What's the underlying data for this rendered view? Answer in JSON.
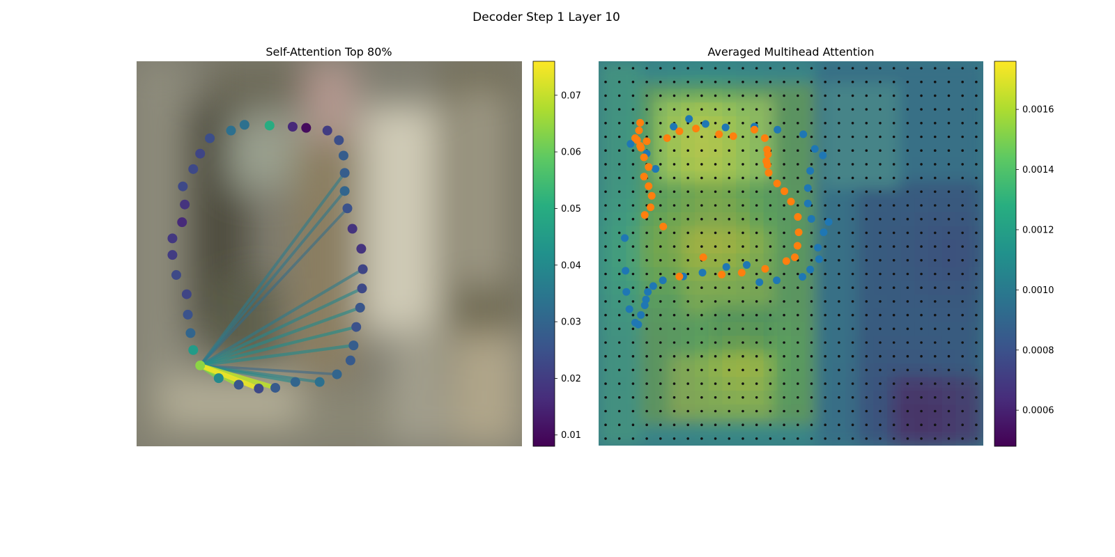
{
  "figure": {
    "suptitle": "Decoder Step 1 Layer 10"
  },
  "chart_data": [
    {
      "type": "scatter",
      "title": "Self-Attention Top 80%",
      "background": "blurred photograph (street scene), no axes",
      "colormap": "viridis",
      "colorbar": {
        "ticks": [
          0.01,
          0.02,
          0.03,
          0.04,
          0.05,
          0.06,
          0.07
        ],
        "range": [
          0.008,
          0.076
        ]
      },
      "query_point": {
        "x": 0.165,
        "y": 0.79,
        "value": 0.064
      },
      "points": [
        {
          "x": 0.28,
          "y": 0.165,
          "value": 0.033
        },
        {
          "x": 0.245,
          "y": 0.18,
          "value": 0.033
        },
        {
          "x": 0.19,
          "y": 0.2,
          "value": 0.024
        },
        {
          "x": 0.165,
          "y": 0.24,
          "value": 0.022
        },
        {
          "x": 0.147,
          "y": 0.28,
          "value": 0.023
        },
        {
          "x": 0.12,
          "y": 0.325,
          "value": 0.023
        },
        {
          "x": 0.125,
          "y": 0.372,
          "value": 0.018
        },
        {
          "x": 0.118,
          "y": 0.418,
          "value": 0.016
        },
        {
          "x": 0.093,
          "y": 0.46,
          "value": 0.019
        },
        {
          "x": 0.093,
          "y": 0.503,
          "value": 0.02
        },
        {
          "x": 0.103,
          "y": 0.555,
          "value": 0.023
        },
        {
          "x": 0.13,
          "y": 0.605,
          "value": 0.022
        },
        {
          "x": 0.133,
          "y": 0.658,
          "value": 0.025
        },
        {
          "x": 0.14,
          "y": 0.706,
          "value": 0.03
        },
        {
          "x": 0.147,
          "y": 0.75,
          "value": 0.045
        },
        {
          "x": 0.213,
          "y": 0.823,
          "value": 0.04
        },
        {
          "x": 0.265,
          "y": 0.84,
          "value": 0.026
        },
        {
          "x": 0.317,
          "y": 0.85,
          "value": 0.023
        },
        {
          "x": 0.36,
          "y": 0.848,
          "value": 0.027
        },
        {
          "x": 0.412,
          "y": 0.833,
          "value": 0.03
        },
        {
          "x": 0.475,
          "y": 0.833,
          "value": 0.033
        },
        {
          "x": 0.52,
          "y": 0.813,
          "value": 0.03
        },
        {
          "x": 0.555,
          "y": 0.777,
          "value": 0.027
        },
        {
          "x": 0.563,
          "y": 0.738,
          "value": 0.028
        },
        {
          "x": 0.57,
          "y": 0.69,
          "value": 0.025
        },
        {
          "x": 0.58,
          "y": 0.64,
          "value": 0.026
        },
        {
          "x": 0.585,
          "y": 0.59,
          "value": 0.023
        },
        {
          "x": 0.587,
          "y": 0.54,
          "value": 0.022
        },
        {
          "x": 0.583,
          "y": 0.487,
          "value": 0.018
        },
        {
          "x": 0.56,
          "y": 0.435,
          "value": 0.018
        },
        {
          "x": 0.547,
          "y": 0.382,
          "value": 0.025
        },
        {
          "x": 0.54,
          "y": 0.337,
          "value": 0.03
        },
        {
          "x": 0.54,
          "y": 0.29,
          "value": 0.028
        },
        {
          "x": 0.537,
          "y": 0.245,
          "value": 0.028
        },
        {
          "x": 0.525,
          "y": 0.205,
          "value": 0.024
        },
        {
          "x": 0.495,
          "y": 0.18,
          "value": 0.02
        },
        {
          "x": 0.44,
          "y": 0.173,
          "value": 0.01
        },
        {
          "x": 0.405,
          "y": 0.17,
          "value": 0.016
        },
        {
          "x": 0.345,
          "y": 0.167,
          "value": 0.05
        }
      ],
      "attention_lines": [
        {
          "to": {
            "x": 0.317,
            "y": 0.85
          },
          "value": 0.074
        },
        {
          "to": {
            "x": 0.36,
            "y": 0.848
          },
          "value": 0.069
        },
        {
          "to": {
            "x": 0.265,
            "y": 0.84
          },
          "value": 0.066
        },
        {
          "to": {
            "x": 0.213,
            "y": 0.823
          },
          "value": 0.062
        },
        {
          "to": {
            "x": 0.412,
            "y": 0.833
          },
          "value": 0.04
        },
        {
          "to": {
            "x": 0.475,
            "y": 0.833
          },
          "value": 0.038
        },
        {
          "to": {
            "x": 0.563,
            "y": 0.738
          },
          "value": 0.04
        },
        {
          "to": {
            "x": 0.57,
            "y": 0.69
          },
          "value": 0.041
        },
        {
          "to": {
            "x": 0.58,
            "y": 0.64
          },
          "value": 0.04
        },
        {
          "to": {
            "x": 0.585,
            "y": 0.59
          },
          "value": 0.039
        },
        {
          "to": {
            "x": 0.587,
            "y": 0.54
          },
          "value": 0.036
        },
        {
          "to": {
            "x": 0.54,
            "y": 0.337
          },
          "value": 0.035
        },
        {
          "to": {
            "x": 0.54,
            "y": 0.29
          },
          "value": 0.036
        },
        {
          "to": {
            "x": 0.547,
            "y": 0.382
          },
          "value": 0.032
        },
        {
          "to": {
            "x": 0.52,
            "y": 0.813
          },
          "value": 0.03
        }
      ]
    },
    {
      "type": "heatmap",
      "title": "Averaged Multihead Attention",
      "colormap": "viridis",
      "colorbar": {
        "ticks": [
          0.0006,
          0.0008,
          0.001,
          0.0012,
          0.0014,
          0.0016
        ],
        "range": [
          0.00048,
          0.00176
        ]
      },
      "grid": {
        "rows": 28,
        "cols": 28
      },
      "attention_peaks": [
        {
          "x": 0.27,
          "y": 0.2,
          "value": 0.0017
        },
        {
          "x": 0.33,
          "y": 0.45,
          "value": 0.00165
        },
        {
          "x": 0.37,
          "y": 0.78,
          "value": 0.0016
        },
        {
          "x": 0.14,
          "y": 0.5,
          "value": 0.00145
        }
      ],
      "attention_lows": [
        {
          "x": 0.85,
          "y": 0.93,
          "value": 0.00055
        },
        {
          "x": 0.92,
          "y": 0.5,
          "value": 0.0007
        },
        {
          "x": 0.75,
          "y": 0.85,
          "value": 0.00085
        }
      ],
      "series": [
        {
          "color": "#1f77b4",
          "x": [
            0.083,
            0.125,
            0.148,
            0.195,
            0.235,
            0.278,
            0.33,
            0.405,
            0.465,
            0.532,
            0.562,
            0.583,
            0.55,
            0.544,
            0.544,
            0.553,
            0.598,
            0.585,
            0.57,
            0.573,
            0.55,
            0.53,
            0.463,
            0.418,
            0.385,
            0.332,
            0.27,
            0.22,
            0.167,
            0.142,
            0.128,
            0.123,
            0.12,
            0.11,
            0.095,
            0.103,
            0.08,
            0.072,
            0.07,
            0.068
          ],
          "y": [
            0.215,
            0.24,
            0.28,
            0.17,
            0.15,
            0.163,
            0.172,
            0.17,
            0.178,
            0.19,
            0.228,
            0.245,
            0.285,
            0.33,
            0.37,
            0.41,
            0.418,
            0.445,
            0.485,
            0.515,
            0.542,
            0.561,
            0.57,
            0.575,
            0.53,
            0.535,
            0.55,
            0.56,
            0.57,
            0.585,
            0.6,
            0.62,
            0.635,
            0.66,
            0.68,
            0.685,
            0.645,
            0.6,
            0.545,
            0.46
          ]
        },
        {
          "color": "#ff7f0e",
          "x": [
            0.125,
            0.178,
            0.21,
            0.253,
            0.313,
            0.35,
            0.405,
            0.432,
            0.438,
            0.44,
            0.436,
            0.439,
            0.442,
            0.464,
            0.483,
            0.5,
            0.518,
            0.52,
            0.517,
            0.51,
            0.488,
            0.433,
            0.372,
            0.32,
            0.272,
            0.21,
            0.168,
            0.135,
            0.138,
            0.13,
            0.13,
            0.118,
            0.11,
            0.095,
            0.1,
            0.105,
            0.108,
            0.108,
            0.118,
            0.12
          ],
          "y": [
            0.208,
            0.2,
            0.182,
            0.175,
            0.19,
            0.195,
            0.178,
            0.2,
            0.23,
            0.242,
            0.26,
            0.27,
            0.29,
            0.318,
            0.338,
            0.365,
            0.405,
            0.445,
            0.48,
            0.51,
            0.52,
            0.54,
            0.55,
            0.555,
            0.51,
            0.56,
            0.43,
            0.38,
            0.35,
            0.325,
            0.275,
            0.25,
            0.225,
            0.2,
            0.205,
            0.18,
            0.16,
            0.22,
            0.3,
            0.4
          ]
        }
      ]
    }
  ]
}
